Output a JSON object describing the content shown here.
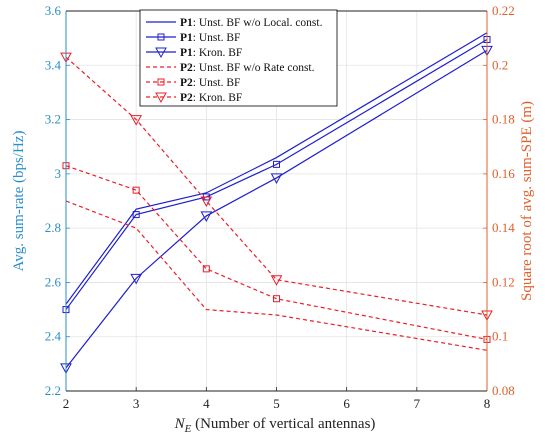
{
  "chart_data": {
    "type": "line",
    "xlabel_main": "N",
    "xlabel_sub": "E",
    "xlabel_rest": " (Number of vertical antennas)",
    "ylabel_left": "Avg. sum-rate (bps/Hz)",
    "ylabel_right": "Square root of avg. sum-SPE (m)",
    "xlim": [
      2,
      8
    ],
    "ylim_left": [
      2.2,
      3.6
    ],
    "ylim_right": [
      0.08,
      0.22
    ],
    "x_ticks": [
      "2",
      "3",
      "4",
      "5",
      "6",
      "7",
      "8"
    ],
    "y_left_ticks": [
      "2.2",
      "2.4",
      "2.6",
      "2.8",
      "3",
      "3.2",
      "3.4",
      "3.6"
    ],
    "y_right_ticks": [
      "0.08",
      "0.1",
      "0.12",
      "0.14",
      "0.16",
      "0.18",
      "0.2",
      "0.22"
    ],
    "legend_placement": "top-center",
    "colors": {
      "p1": "#1f1fd0",
      "p2": "#e8202a",
      "left_axis": "#2a8fc8",
      "right_axis": "#e0602c"
    },
    "series": [
      {
        "prefix": "P1",
        "label": ": Unst. BF w/o Local. const.",
        "axis": "left",
        "style": "solid",
        "marker": "none",
        "x": [
          2,
          3,
          4,
          5,
          8
        ],
        "y": [
          2.52,
          2.87,
          2.93,
          3.06,
          3.52
        ]
      },
      {
        "prefix": "P1",
        "label": ": Unst. BF",
        "axis": "left",
        "style": "solid",
        "marker": "square",
        "x": [
          2,
          3,
          4,
          5,
          8
        ],
        "y": [
          2.5,
          2.85,
          2.915,
          3.035,
          3.495
        ]
      },
      {
        "prefix": "P1",
        "label": ": Kron. BF",
        "axis": "left",
        "style": "solid",
        "marker": "triangle-down",
        "x": [
          2,
          3,
          4,
          5,
          8
        ],
        "y": [
          2.285,
          2.615,
          2.845,
          2.985,
          3.455
        ]
      },
      {
        "prefix": "P2",
        "label": ": Unst. BF w/o Rate const.",
        "axis": "right",
        "style": "dashed",
        "marker": "none",
        "x": [
          2,
          3,
          4,
          5,
          8
        ],
        "y": [
          0.15,
          0.14,
          0.11,
          0.108,
          0.095
        ]
      },
      {
        "prefix": "P2",
        "label": ": Unst. BF",
        "axis": "right",
        "style": "dashed",
        "marker": "square",
        "x": [
          2,
          3,
          4,
          5,
          8
        ],
        "y": [
          0.163,
          0.154,
          0.125,
          0.114,
          0.099
        ]
      },
      {
        "prefix": "P2",
        "label": ": Kron. BF",
        "axis": "right",
        "style": "dashed",
        "marker": "triangle-down",
        "x": [
          2,
          3,
          4,
          5,
          8
        ],
        "y": [
          0.203,
          0.18,
          0.15,
          0.121,
          0.108
        ]
      }
    ]
  }
}
